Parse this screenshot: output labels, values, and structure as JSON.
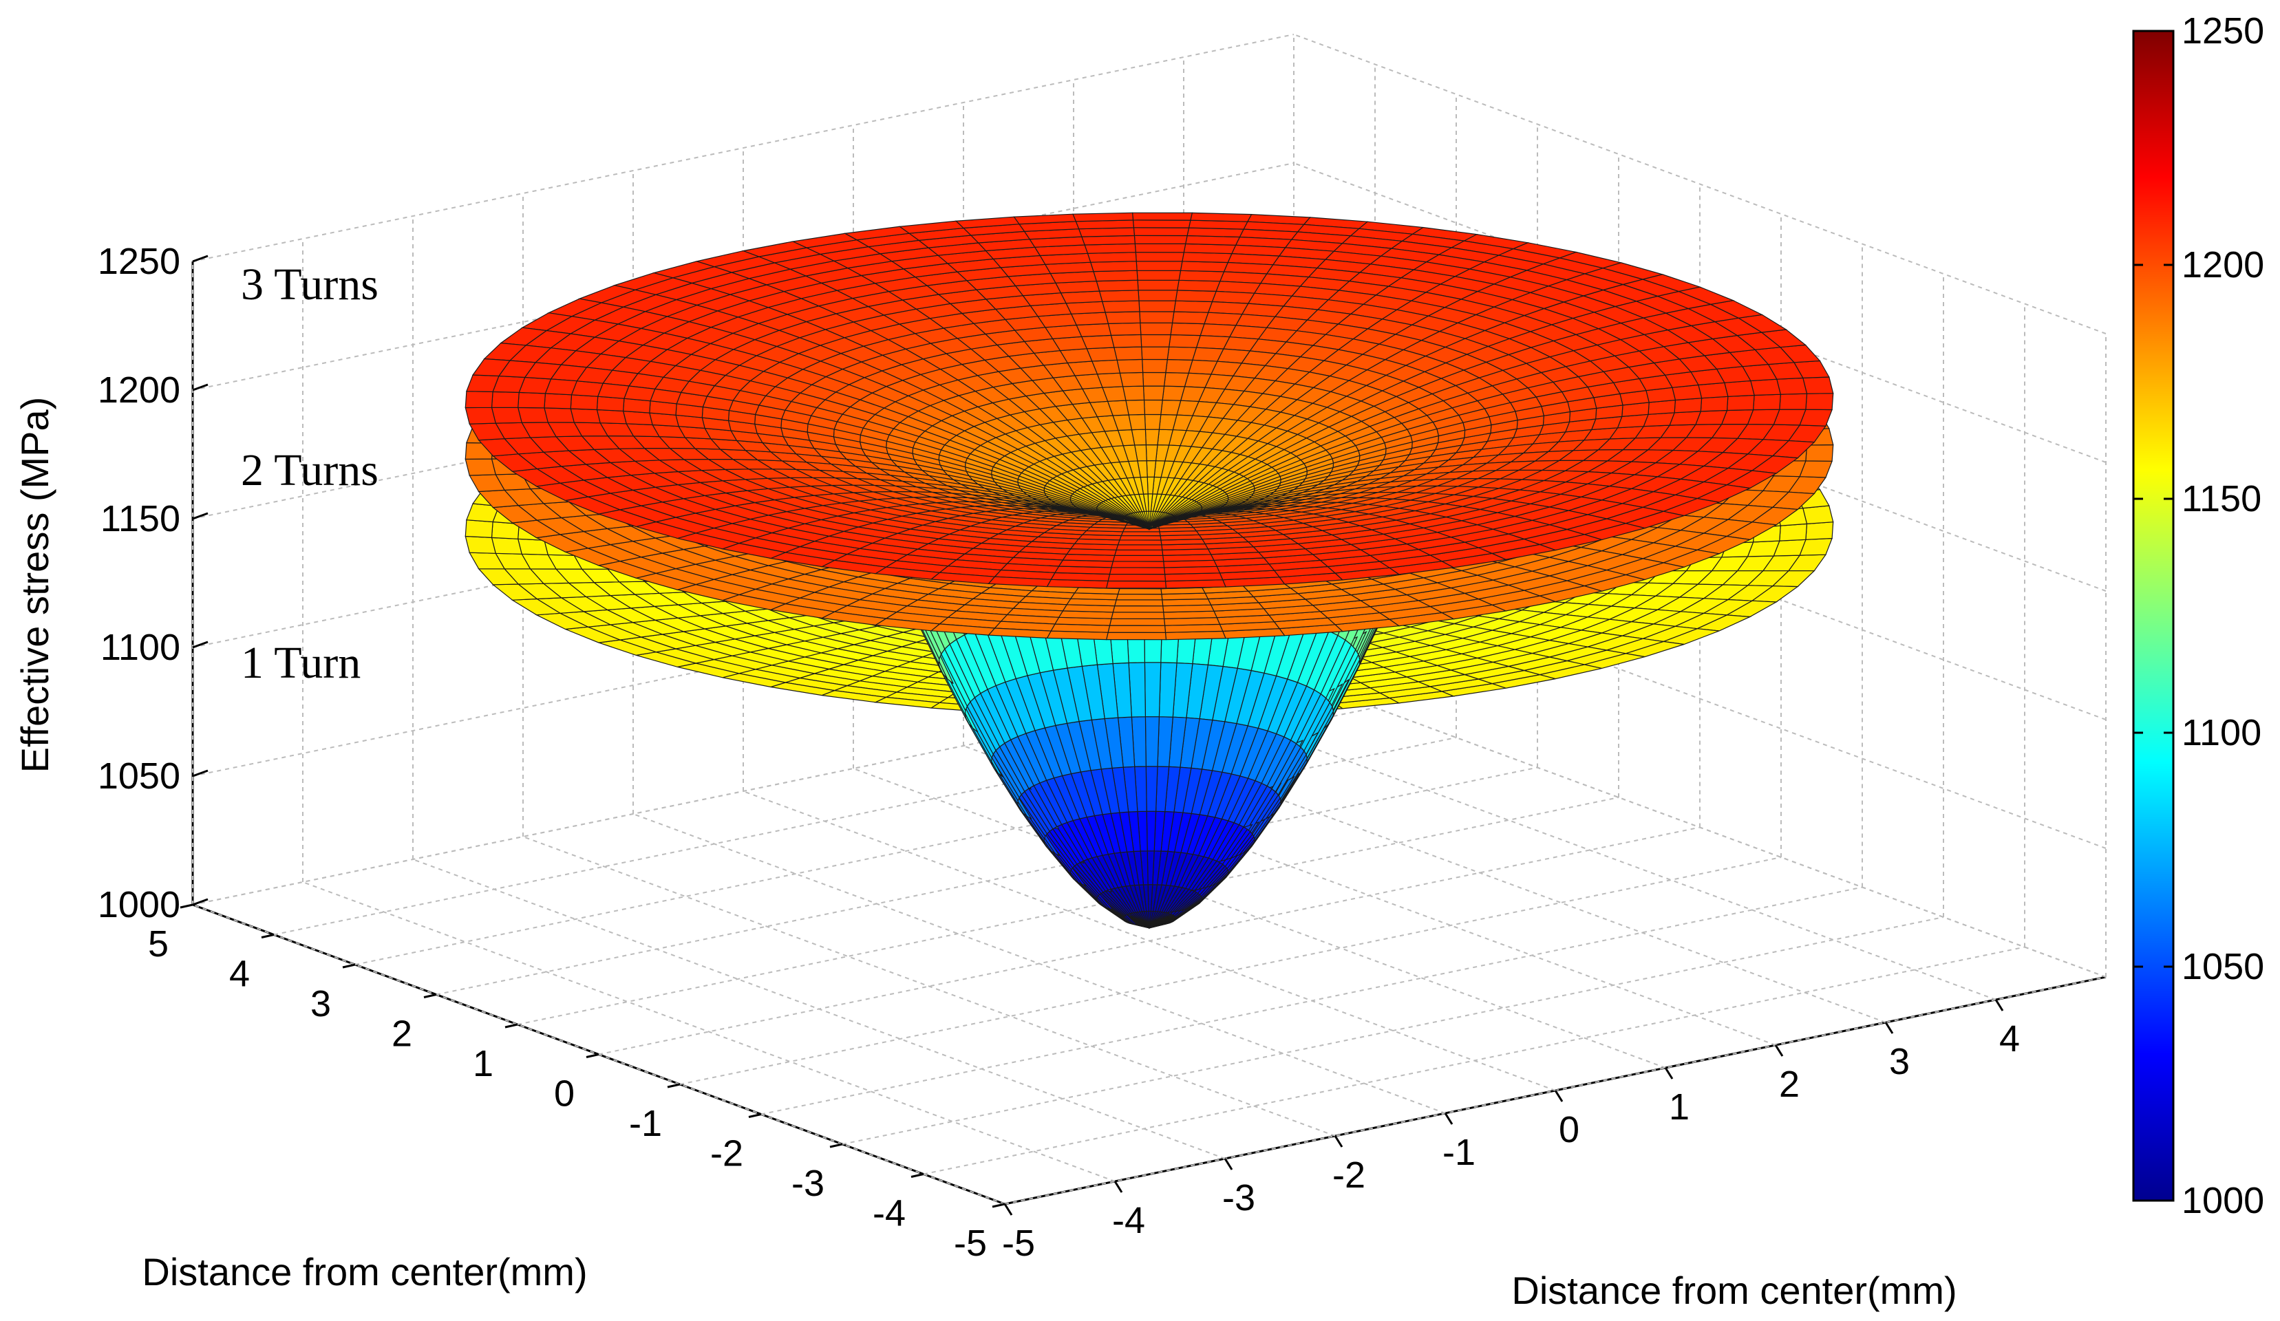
{
  "chart_data": {
    "type": "surface3d",
    "title": "",
    "zlabel": "Effective stress (MPa)",
    "xlabel": "Distance from center(mm)",
    "ylabel": "Distance from center(mm)",
    "zlim": [
      1000,
      1250
    ],
    "xlim": [
      -5,
      5
    ],
    "ylim": [
      -5,
      5
    ],
    "z_ticks": [
      "1000",
      "1050",
      "1100",
      "1150",
      "1200",
      "1250"
    ],
    "x_ticks": [
      "-5",
      "-4",
      "-3",
      "-2",
      "-1",
      "0",
      "1",
      "2",
      "3",
      "4"
    ],
    "y_ticks": [
      "-5",
      "-4",
      "-3",
      "-2",
      "-1",
      "0",
      "1",
      "2",
      "3",
      "4",
      "5"
    ],
    "colorbar": {
      "range": [
        1000,
        1250
      ],
      "ticks": [
        "1000",
        "1050",
        "1100",
        "1150",
        "1200",
        "1250"
      ],
      "colormap": "jet"
    },
    "grid": true,
    "surfaces": [
      {
        "label": "1 Turn",
        "center_stress": 1005,
        "rim_stress": 1160,
        "outer_radius_mm": 5
      },
      {
        "label": "2 Turns",
        "center_stress": 1155,
        "rim_stress": 1190,
        "outer_radius_mm": 5
      },
      {
        "label": "3 Turns",
        "center_stress": 1160,
        "rim_stress": 1210,
        "outer_radius_mm": 5
      }
    ]
  }
}
